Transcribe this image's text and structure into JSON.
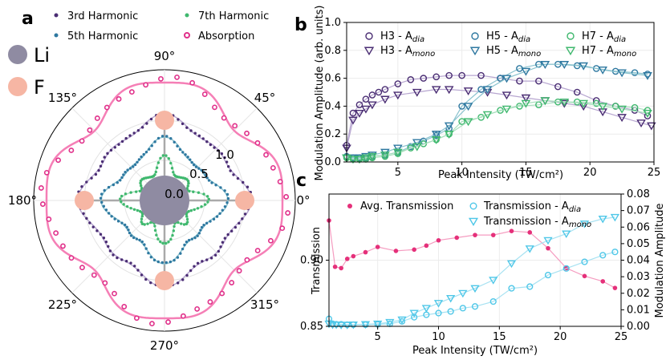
{
  "panel_labels": {
    "a": "a",
    "b": "b",
    "c": "c"
  },
  "colors": {
    "h3": "#4a2d73",
    "h5": "#2e78a0",
    "h7": "#3fb86e",
    "absorption": "#e0308a",
    "absorption_line": "#f57fb6",
    "h3_line": "#b7a6d0",
    "h5_line": "#8bc3cf",
    "h7_line": "#a8dfbd",
    "li": "#8f8ba2",
    "f": "#f6b6a4",
    "transmission": "#e5307a",
    "trans_line": "#f59cc0",
    "trans_a": "#4fc7e8"
  },
  "legend_a": {
    "h3": "3rd Harmonic",
    "h5": "5th Harmonic",
    "h7": "7th Harmonic",
    "absorption": "Absorption",
    "li": "Li",
    "f": "F"
  },
  "chart_data": [
    {
      "id": "a",
      "type": "polar",
      "angle_labels": [
        "0°",
        "45°",
        "90°",
        "135°",
        "180°",
        "225°",
        "270°",
        "315°"
      ],
      "radial_labels": [
        "0.0",
        "0.5",
        "1.0"
      ],
      "radial_ticks": [
        0.0,
        0.5,
        1.0
      ],
      "series": [
        {
          "name": "3rd Harmonic",
          "form": "r = 0.86 + 0.07·cos(4θ) + 0.035·cos(8θ)"
        },
        {
          "name": "5th Harmonic",
          "form": "r = 0.58 + 0.09·cos(4θ) + 0.03·cos(8θ)"
        },
        {
          "name": "7th Harmonic",
          "form": "r = 0.36 + 0.08·cos(4θ) + 0.07·cos(8θ)"
        },
        {
          "name": "Absorption",
          "form": "r = 1.18 + 0.09·cos(4θ) − 0.035·cos(8θ)"
        }
      ],
      "atoms": [
        {
          "name": "Li",
          "angle": 0,
          "radius": 0
        },
        {
          "name": "F",
          "angle": 0,
          "radius": 1
        },
        {
          "name": "F",
          "angle": 90,
          "radius": 1
        },
        {
          "name": "F",
          "angle": 180,
          "radius": 1
        },
        {
          "name": "F",
          "angle": 270,
          "radius": 1
        }
      ]
    },
    {
      "id": "b",
      "type": "line",
      "xlabel": "Peak Intensity (TW/cm²)",
      "ylabel": "Modulation Amplitude (arb. units)",
      "xlim": [
        1,
        25
      ],
      "ylim": [
        0.0,
        1.0
      ],
      "xticks": [
        5,
        10,
        15,
        20,
        25
      ],
      "yticks": [
        0.0,
        0.2,
        0.4,
        0.6,
        0.8,
        1.0
      ],
      "xtick_labels": [
        "5",
        "10",
        "15",
        "20",
        "25"
      ],
      "ytick_labels": [
        "0.0",
        "0.2",
        "0.4",
        "0.6",
        "0.8",
        "1.0"
      ],
      "series": [
        {
          "name": "H3 - A_dia",
          "label_main": "H3 - A",
          "label_sub": "dia",
          "marker": "circle",
          "color": "#4a2d73",
          "x": [
            1,
            1.5,
            2,
            2.5,
            3,
            3.5,
            4,
            5,
            6,
            7,
            8,
            9,
            10,
            11.5,
            13,
            14.5,
            16,
            17.5,
            19,
            20.5,
            22,
            23.5,
            24.5
          ],
          "y": [
            0.12,
            0.35,
            0.41,
            0.45,
            0.48,
            0.5,
            0.52,
            0.56,
            0.59,
            0.6,
            0.61,
            0.62,
            0.62,
            0.62,
            0.6,
            0.58,
            0.58,
            0.54,
            0.5,
            0.44,
            0.4,
            0.37,
            0.33
          ]
        },
        {
          "name": "H3 - A_mono",
          "label_main": "H3 - A",
          "label_sub": "mono",
          "marker": "triangle",
          "color": "#4a2d73",
          "x": [
            1,
            1.5,
            2,
            2.5,
            3,
            4,
            5,
            6.5,
            8,
            9,
            10.5,
            12,
            13.5,
            15,
            16.5,
            18,
            19.5,
            21,
            22.5,
            24,
            24.8
          ],
          "y": [
            0.1,
            0.3,
            0.35,
            0.38,
            0.41,
            0.45,
            0.48,
            0.5,
            0.52,
            0.52,
            0.51,
            0.5,
            0.48,
            0.46,
            0.44,
            0.42,
            0.4,
            0.36,
            0.32,
            0.28,
            0.26
          ]
        },
        {
          "name": "H5 - A_dia",
          "label_main": "H5 - A",
          "label_sub": "dia",
          "marker": "circle",
          "color": "#2e78a0",
          "x": [
            1,
            1.5,
            2,
            2.5,
            3,
            4,
            5,
            6,
            7,
            8,
            9,
            10,
            11.5,
            13,
            14.5,
            16,
            17.5,
            19,
            20.5,
            22,
            23.5,
            24.5
          ],
          "y": [
            0.04,
            0.03,
            0.03,
            0.03,
            0.04,
            0.05,
            0.07,
            0.11,
            0.15,
            0.19,
            0.24,
            0.4,
            0.52,
            0.6,
            0.67,
            0.7,
            0.7,
            0.69,
            0.67,
            0.65,
            0.64,
            0.63
          ]
        },
        {
          "name": "H5 - A_mono",
          "label_main": "H5 - A",
          "label_sub": "mono",
          "marker": "triangle",
          "color": "#2e78a0",
          "x": [
            1,
            1.5,
            2,
            2.5,
            3,
            4,
            5,
            6.5,
            8,
            9,
            10.5,
            12,
            13.5,
            15,
            16.5,
            18,
            19.5,
            21,
            22.5,
            24.5
          ],
          "y": [
            0.03,
            0.03,
            0.03,
            0.04,
            0.05,
            0.07,
            0.1,
            0.14,
            0.2,
            0.26,
            0.4,
            0.52,
            0.6,
            0.65,
            0.7,
            0.7,
            0.69,
            0.66,
            0.64,
            0.62
          ]
        },
        {
          "name": "H7 - A_dia",
          "label_main": "H7 - A",
          "label_sub": "dia",
          "marker": "circle",
          "color": "#3fb86e",
          "x": [
            1,
            1.5,
            2,
            2.5,
            3,
            4,
            5,
            6,
            7,
            8,
            9,
            10,
            11.5,
            13,
            14.5,
            16,
            17.5,
            19,
            20.5,
            22,
            23.5,
            24.5
          ],
          "y": [
            0.03,
            0.02,
            0.02,
            0.02,
            0.03,
            0.04,
            0.06,
            0.1,
            0.13,
            0.16,
            0.2,
            0.29,
            0.32,
            0.37,
            0.4,
            0.41,
            0.43,
            0.43,
            0.42,
            0.4,
            0.39,
            0.37
          ]
        },
        {
          "name": "H7 - A_mono",
          "label_main": "H7 - A",
          "label_sub": "mono",
          "marker": "triangle",
          "color": "#3fb86e",
          "x": [
            1,
            1.5,
            2,
            2.5,
            3,
            4,
            5,
            6.5,
            8,
            9,
            10.5,
            12,
            13.5,
            15,
            16.5,
            18,
            19.5,
            21,
            22.5,
            24.5
          ],
          "y": [
            0.03,
            0.02,
            0.02,
            0.03,
            0.04,
            0.05,
            0.07,
            0.11,
            0.16,
            0.2,
            0.29,
            0.34,
            0.38,
            0.42,
            0.44,
            0.43,
            0.42,
            0.4,
            0.38,
            0.35
          ]
        }
      ]
    },
    {
      "id": "c",
      "type": "line",
      "xlabel": "Peak Intensity (TW/cm²)",
      "ylabel_left": "Transmission",
      "ylabel_right": "Modulation Amplitude",
      "xlim": [
        1,
        25
      ],
      "ylim_left": [
        0.85,
        0.95
      ],
      "ylim_right": [
        0.0,
        0.08
      ],
      "xticks": [
        5,
        10,
        15,
        20,
        25
      ],
      "xtick_labels": [
        "5",
        "10",
        "15",
        "20",
        "25"
      ],
      "yticks_left": [
        0.85,
        0.9
      ],
      "ytick_left_labels": [
        "0.85",
        "0.90"
      ],
      "yticks_right": [
        0.0,
        0.01,
        0.02,
        0.03,
        0.04,
        0.05,
        0.06,
        0.07,
        0.08
      ],
      "ytick_right_labels": [
        "0.00",
        "0.01",
        "0.02",
        "0.03",
        "0.04",
        "0.05",
        "0.06",
        "0.07",
        "0.08"
      ],
      "series": [
        {
          "name": "Avg. Transmission",
          "label_main": "Avg. Transmission",
          "label_sub": "",
          "marker": "dot",
          "axis": "left",
          "color": "#e5307a",
          "x": [
            1,
            1.5,
            2,
            2.5,
            3,
            4,
            5,
            6.5,
            8,
            9,
            10,
            11.5,
            13,
            14.5,
            16,
            17.5,
            19,
            20.5,
            22,
            23.5,
            24.5
          ],
          "y": [
            0.93,
            0.895,
            0.894,
            0.901,
            0.903,
            0.906,
            0.91,
            0.907,
            0.908,
            0.911,
            0.915,
            0.917,
            0.919,
            0.919,
            0.922,
            0.921,
            0.909,
            0.894,
            0.888,
            0.884,
            0.879
          ]
        },
        {
          "name": "Transmission - A_dia",
          "label_main": "Transmission - A",
          "label_sub": "dia",
          "marker": "circle",
          "axis": "right",
          "color": "#4fc7e8",
          "x": [
            1,
            1.3,
            1.6,
            2,
            2.5,
            3,
            4,
            5,
            6,
            7,
            8,
            9,
            10,
            11,
            12,
            13,
            14.5,
            16,
            17.5,
            19,
            20.5,
            22,
            23.5,
            24.5
          ],
          "y": [
            0.0045,
            0.0015,
            0.0012,
            0.0012,
            0.001,
            0.001,
            0.001,
            0.0012,
            0.0015,
            0.003,
            0.0055,
            0.007,
            0.008,
            0.009,
            0.011,
            0.012,
            0.015,
            0.023,
            0.024,
            0.031,
            0.035,
            0.039,
            0.043,
            0.045
          ]
        },
        {
          "name": "Transmission - A_mono",
          "label_main": "Transmission - A",
          "label_sub": "mono",
          "marker": "triangle",
          "axis": "right",
          "color": "#4fc7e8",
          "x": [
            1,
            1.3,
            1.6,
            2,
            2.5,
            3,
            4,
            5,
            6,
            7,
            8,
            9,
            10,
            11,
            12,
            13,
            14.5,
            16,
            17.5,
            19,
            20.5,
            22,
            23.5,
            24.5
          ],
          "y": [
            0.0015,
            0.001,
            0.001,
            0.0008,
            0.0008,
            0.001,
            0.0012,
            0.0015,
            0.0025,
            0.004,
            0.008,
            0.011,
            0.014,
            0.017,
            0.02,
            0.023,
            0.028,
            0.038,
            0.047,
            0.052,
            0.056,
            0.062,
            0.065,
            0.066
          ]
        }
      ]
    }
  ]
}
